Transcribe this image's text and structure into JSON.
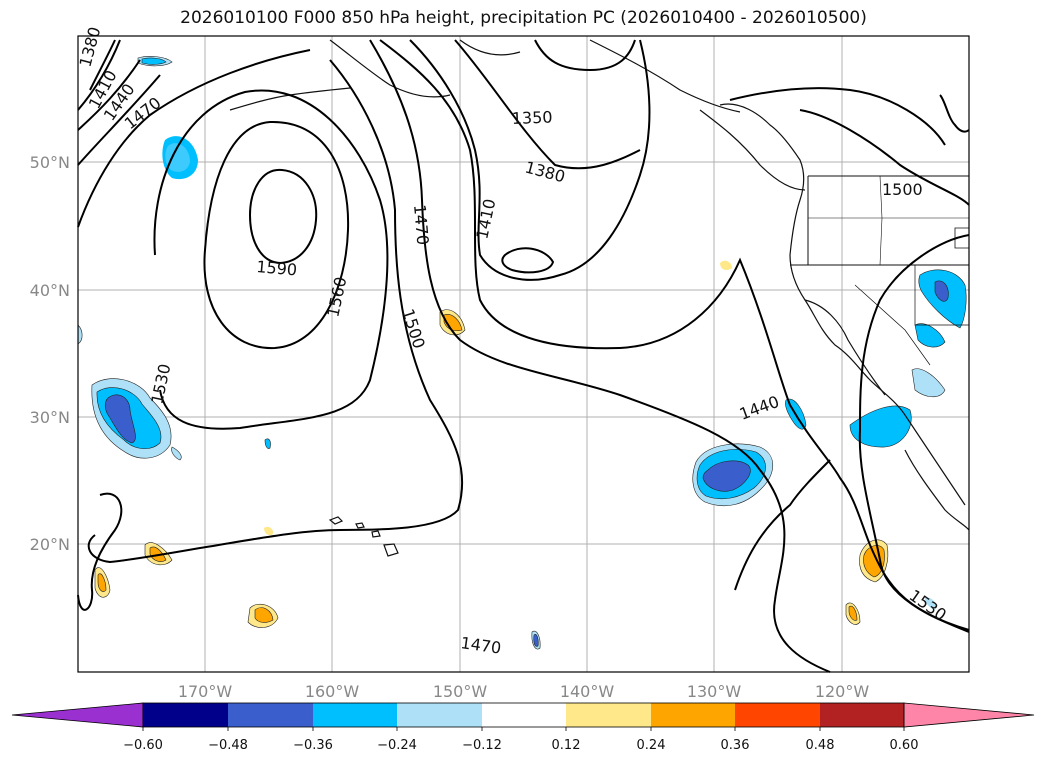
{
  "title": "2026010100 F000 850 hPa height, precipitation PC (2026010400 - 2026010500)",
  "lon_ticks": [
    "170°W",
    "160°W",
    "150°W",
    "140°W",
    "130°W",
    "120°W"
  ],
  "lat_ticks": [
    "50°N",
    "40°N",
    "30°N",
    "20°N"
  ],
  "height_contour_labels": [
    "1350",
    "1380",
    "1410",
    "1440",
    "1470",
    "1500",
    "1530",
    "1560",
    "1590"
  ],
  "colorbar": {
    "tick_labels": [
      "−0.60",
      "−0.48",
      "−0.36",
      "−0.24",
      "−0.12",
      "0.12",
      "0.24",
      "0.36",
      "0.48",
      "0.60"
    ],
    "colors": [
      "#9b30d0",
      "#00008b",
      "#3a5fcd",
      "#00bfff",
      "#aee1f8",
      "#ffffff",
      "#ffe88a",
      "#ffa500",
      "#ff4500",
      "#b22222",
      "#ff85a8"
    ]
  },
  "map_labels": [
    {
      "text": "1380"
    },
    {
      "text": "1410"
    },
    {
      "text": "1440"
    },
    {
      "text": "1470"
    },
    {
      "text": "1350"
    },
    {
      "text": "1380"
    },
    {
      "text": "1410"
    },
    {
      "text": "1470"
    },
    {
      "text": "1500"
    },
    {
      "text": "1560"
    },
    {
      "text": "1590"
    },
    {
      "text": "1530"
    },
    {
      "text": "1440"
    },
    {
      "text": "1470"
    },
    {
      "text": "1530"
    },
    {
      "text": "1500"
    }
  ]
}
